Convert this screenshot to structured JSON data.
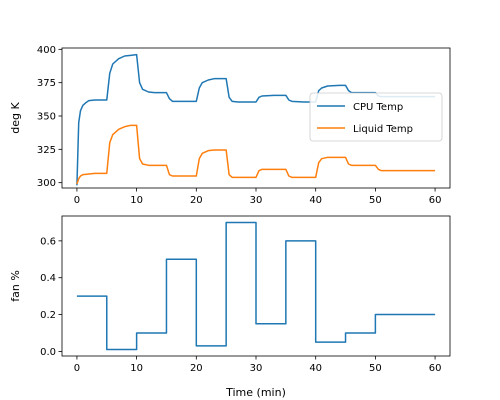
{
  "chart_data": [
    {
      "type": "line",
      "title": "",
      "xlabel": "",
      "ylabel": "deg K",
      "xlim": [
        -2.5,
        62.5
      ],
      "ylim": [
        296,
        401
      ],
      "xticks": [
        0,
        10,
        20,
        30,
        40,
        50,
        60
      ],
      "yticks": [
        300,
        325,
        350,
        375,
        400
      ],
      "grid": false,
      "legend_position": "center-right",
      "series": [
        {
          "name": "CPU Temp",
          "color": "#1f77b4",
          "x": [
            0,
            0.3,
            0.6,
            1,
            1.5,
            2,
            3,
            4,
            5,
            5.5,
            6,
            7,
            8,
            9,
            10,
            10.5,
            11,
            12,
            13,
            14,
            15,
            15.5,
            16,
            17,
            18,
            19,
            20,
            20.5,
            21,
            22,
            23,
            24,
            25,
            25.5,
            26,
            27,
            28,
            29,
            30,
            30.5,
            31,
            33,
            35,
            35.5,
            36,
            38,
            40,
            40.5,
            41,
            42,
            44,
            45,
            45.5,
            46,
            48,
            50,
            50.5,
            51,
            55,
            60
          ],
          "y": [
            298,
            345,
            354,
            358,
            360,
            361.5,
            362,
            362,
            362,
            382,
            389,
            393,
            395,
            395.5,
            396,
            375,
            370,
            368,
            367.5,
            367.5,
            367.5,
            363,
            361,
            361,
            361,
            361,
            361,
            371,
            375,
            377,
            378,
            378,
            378,
            364,
            361,
            360.5,
            360.5,
            360.5,
            360.5,
            364,
            365,
            365.5,
            365.5,
            362,
            361,
            360.5,
            360.5,
            369,
            371,
            372.5,
            373,
            373,
            369,
            367.5,
            367.5,
            367.5,
            365,
            364.5,
            364.5,
            364.5
          ]
        },
        {
          "name": "Liquid Temp",
          "color": "#ff7f0e",
          "x": [
            0,
            0.3,
            0.6,
            1,
            2,
            3,
            5,
            5.5,
            6,
            7,
            8,
            9,
            10,
            10.5,
            11,
            12,
            15,
            15.5,
            16,
            20,
            20.5,
            21,
            22,
            23,
            25,
            25.5,
            26,
            30,
            30.5,
            31,
            35,
            35.5,
            36,
            40,
            40.5,
            41,
            42,
            45,
            45.5,
            46,
            50,
            50.5,
            51,
            60
          ],
          "y": [
            299,
            303,
            305,
            306,
            306.5,
            307,
            307,
            330,
            336,
            340,
            342,
            343,
            343,
            318,
            314,
            313,
            313,
            306,
            305,
            305,
            318,
            322,
            324,
            324.5,
            324.5,
            306,
            304,
            304,
            309,
            310,
            310,
            305,
            304,
            304,
            315,
            318,
            319,
            319,
            314,
            313,
            313,
            310,
            309,
            309
          ]
        }
      ]
    },
    {
      "type": "line",
      "title": "",
      "xlabel": "Time (min)",
      "ylabel": "fan %",
      "xlim": [
        -2.5,
        62.5
      ],
      "ylim": [
        -0.025,
        0.735
      ],
      "xticks": [
        0,
        10,
        20,
        30,
        40,
        50,
        60
      ],
      "yticks": [
        0.0,
        0.2,
        0.4,
        0.6
      ],
      "grid": false,
      "series": [
        {
          "color": "#1f77b4",
          "step": true,
          "x": [
            0,
            5,
            5,
            10,
            10,
            15,
            15,
            20,
            20,
            25,
            25,
            30,
            30,
            35,
            35,
            40,
            40,
            45,
            45,
            50,
            50,
            60
          ],
          "y": [
            0.3,
            0.3,
            0.01,
            0.01,
            0.1,
            0.1,
            0.5,
            0.5,
            0.03,
            0.03,
            0.7,
            0.7,
            0.15,
            0.15,
            0.6,
            0.6,
            0.05,
            0.05,
            0.1,
            0.1,
            0.2,
            0.2
          ]
        }
      ]
    }
  ]
}
